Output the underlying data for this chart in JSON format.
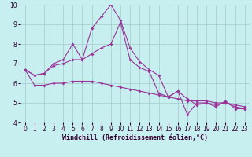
{
  "xlabel": "Windchill (Refroidissement éolien,°C)",
  "background_color": "#c8eff0",
  "grid_color": "#aacfcf",
  "line_color": "#993399",
  "xlim": [
    -0.5,
    23.5
  ],
  "ylim": [
    4.0,
    10.0
  ],
  "yticks": [
    4,
    5,
    6,
    7,
    8,
    9,
    10
  ],
  "xticks": [
    0,
    1,
    2,
    3,
    4,
    5,
    6,
    7,
    8,
    9,
    10,
    11,
    12,
    13,
    14,
    15,
    16,
    17,
    18,
    19,
    20,
    21,
    22,
    23
  ],
  "line1_x": [
    0,
    1,
    2,
    3,
    4,
    5,
    6,
    7,
    8,
    9,
    10,
    11,
    12,
    13,
    14,
    15,
    16,
    17,
    18,
    19,
    20,
    21,
    22,
    23
  ],
  "line1_y": [
    6.7,
    6.4,
    6.5,
    7.0,
    7.2,
    8.0,
    7.2,
    8.8,
    9.4,
    10.0,
    9.2,
    7.8,
    7.1,
    6.7,
    6.4,
    5.3,
    5.6,
    5.2,
    4.9,
    5.0,
    4.9,
    5.0,
    4.8,
    4.7
  ],
  "line2_x": [
    0,
    1,
    2,
    3,
    4,
    5,
    6,
    7,
    8,
    9,
    10,
    11,
    12,
    13,
    14,
    15,
    16,
    17,
    18,
    19,
    20,
    21,
    22,
    23
  ],
  "line2_y": [
    6.7,
    6.4,
    6.5,
    6.9,
    7.0,
    7.2,
    7.2,
    7.5,
    7.8,
    8.0,
    9.1,
    7.2,
    6.8,
    6.6,
    5.5,
    5.3,
    5.6,
    4.4,
    5.0,
    5.0,
    4.8,
    5.1,
    4.7,
    4.7
  ],
  "line3_x": [
    0,
    1,
    2,
    3,
    4,
    5,
    6,
    7,
    8,
    9,
    10,
    11,
    12,
    13,
    14,
    15,
    16,
    17,
    18,
    19,
    20,
    21,
    22,
    23
  ],
  "line3_y": [
    6.7,
    5.9,
    5.9,
    6.0,
    6.0,
    6.1,
    6.1,
    6.1,
    6.0,
    5.9,
    5.8,
    5.7,
    5.6,
    5.5,
    5.4,
    5.3,
    5.2,
    5.1,
    5.1,
    5.1,
    5.0,
    5.0,
    4.9,
    4.8
  ],
  "tick_fontsize": 5.5,
  "xlabel_fontsize": 6.0,
  "line_width": 0.8,
  "marker_size": 2.0
}
